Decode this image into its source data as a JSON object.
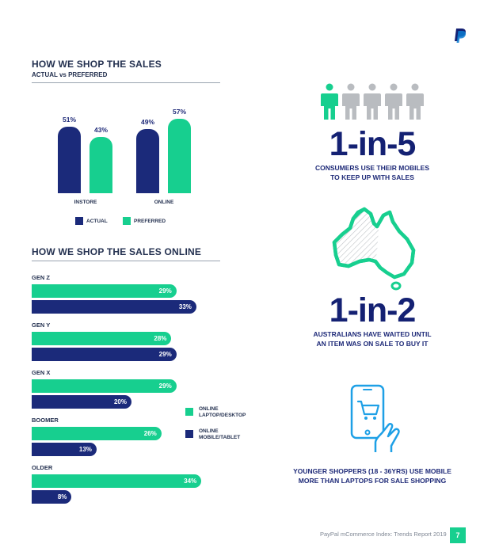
{
  "logo": {
    "name": "paypal-logo-icon"
  },
  "section1": {
    "title": "HOW WE SHOP THE SALES",
    "subtitle": "ACTUAL vs PREFERRED"
  },
  "chart_data": [
    {
      "type": "bar",
      "categories": [
        "INSTORE",
        "ONLINE"
      ],
      "series": [
        {
          "name": "ACTUAL",
          "values": [
            51,
            49
          ],
          "labels": [
            "51%",
            "49%"
          ],
          "color": "#1b2a7a"
        },
        {
          "name": "PREFERRED",
          "values": [
            43,
            57
          ],
          "labels": [
            "43%",
            "57%"
          ],
          "color": "#17cf8f"
        }
      ],
      "title": "HOW WE SHOP THE SALES",
      "subtitle": "ACTUAL vs PREFERRED",
      "legend": "bottom"
    },
    {
      "type": "bar",
      "orientation": "horizontal",
      "title": "HOW WE SHOP THE SALES ONLINE",
      "categories": [
        "GEN Z",
        "GEN Y",
        "GEN X",
        "BOOMER",
        "OLDER"
      ],
      "series": [
        {
          "name": "ONLINE LAPTOP/DESKTOP",
          "values": [
            29,
            28,
            29,
            26,
            34
          ],
          "labels": [
            "29%",
            "28%",
            "29%",
            "26%",
            "34%"
          ],
          "color": "#17cf8f"
        },
        {
          "name": "ONLINE MOBILE/TABLET",
          "values": [
            33,
            29,
            20,
            13,
            8
          ],
          "labels": [
            "33%",
            "29%",
            "20%",
            "13%",
            "8%"
          ],
          "color": "#1b2a7a"
        }
      ],
      "legend": "right"
    }
  ],
  "section2": {
    "title": "HOW WE SHOP THE SALES ONLINE",
    "legend": [
      {
        "line1": "ONLINE",
        "line2": "LAPTOP/DESKTOP"
      },
      {
        "line1": "ONLINE",
        "line2": "MOBILE/TABLET"
      }
    ]
  },
  "stat1": {
    "value": "1-in-5",
    "caption_line1": "CONSUMERS USE THEIR MOBILES",
    "caption_line2": "TO KEEP UP WITH SALES",
    "highlighted": 1,
    "total": 5
  },
  "stat2": {
    "value": "1-in-2",
    "caption_line1": "AUSTRALIANS HAVE WAITED UNTIL",
    "caption_line2": "AN ITEM WAS ON SALE TO BUY IT"
  },
  "stat3": {
    "caption_line1": "YOUNGER SHOPPERS (18 - 36YRS) USE MOBILE",
    "caption_line2": "MORE THAN LAPTOPS FOR SALE SHOPPING"
  },
  "footer": {
    "text": "PayPal mCommerce Index: Trends Report 2019",
    "page": "7"
  },
  "colors": {
    "navy": "#1b2a7a",
    "green": "#17cf8f",
    "person_grey": "#b9bcc0"
  },
  "icons": [
    "person-icon",
    "australia-map-icon",
    "phone-cart-icon"
  ]
}
